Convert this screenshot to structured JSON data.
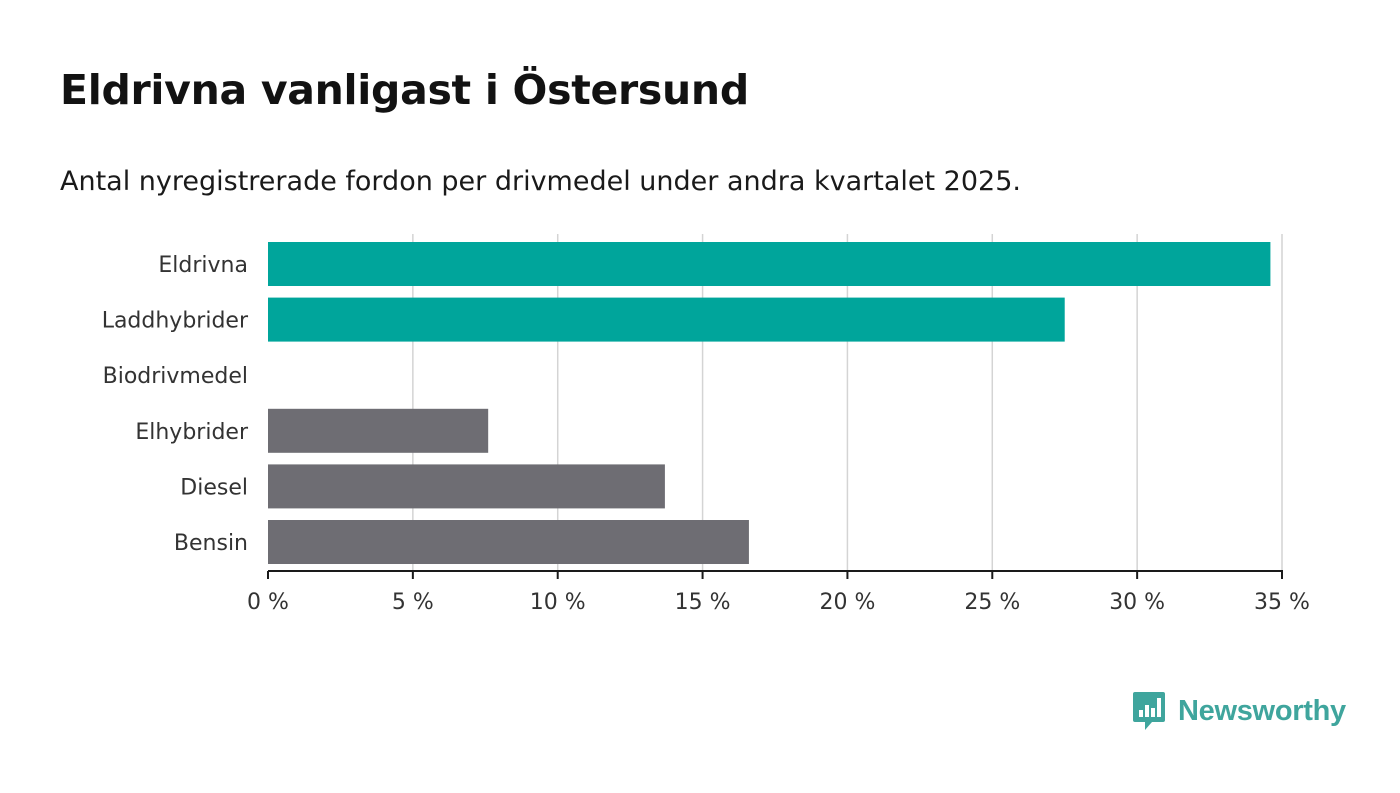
{
  "title": "Eldrivna vanligast i Östersund",
  "subtitle": "Antal nyregistrerade fordon per drivmedel under andra kvartalet 2025.",
  "brand": {
    "name": "Newsworthy",
    "icon": "newsworthy-logo-icon"
  },
  "colors": {
    "highlight": "#00a59b",
    "neutral": "#6e6d73",
    "grid": "#d4d4d4",
    "axis": "#1a1a1a",
    "text": "#333333"
  },
  "chart_data": {
    "type": "bar",
    "orientation": "horizontal",
    "categories": [
      "Eldrivna",
      "Laddhybrider",
      "Biodrivmedel",
      "Elhybrider",
      "Diesel",
      "Bensin"
    ],
    "values": [
      34.6,
      27.5,
      0,
      7.6,
      13.7,
      16.6
    ],
    "bar_colors": [
      "highlight",
      "highlight",
      "neutral",
      "neutral",
      "neutral",
      "neutral"
    ],
    "xlim": [
      0,
      35
    ],
    "xticks": [
      0,
      5,
      10,
      15,
      20,
      25,
      30,
      35
    ],
    "tick_labels": [
      "0 %",
      "5 %",
      "10 %",
      "15 %",
      "20 %",
      "25 %",
      "30 %",
      "35 %"
    ],
    "grid": true,
    "xlabel": "",
    "ylabel": ""
  }
}
